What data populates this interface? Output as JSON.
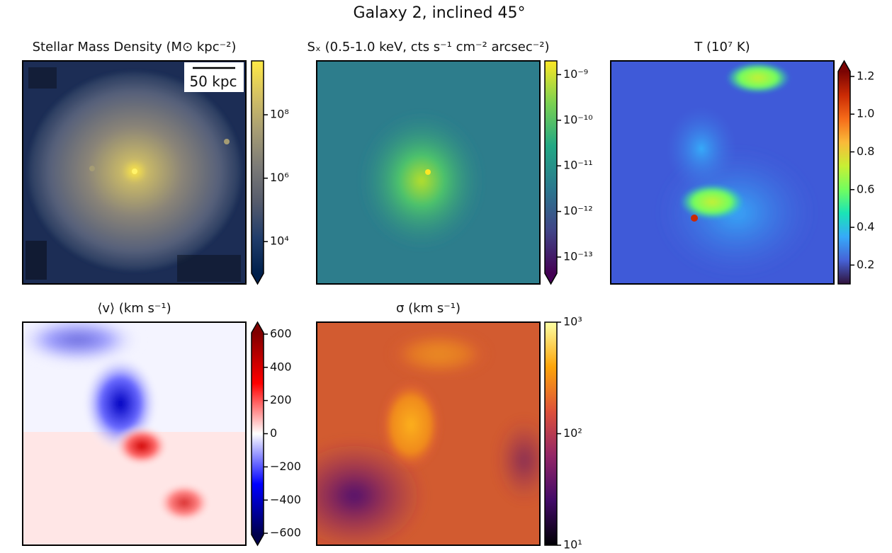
{
  "title": "Galaxy 2, inclined 45°",
  "chart_data": [
    {
      "type": "image",
      "title": "Stellar Mass Density (M⊙ kpc⁻²)",
      "annotation": "50 kpc",
      "cmap": "cividis",
      "extend": "min",
      "log": true,
      "ylim": [
        1000,
        5000000000
      ],
      "yticks": [
        {
          "value": 10000,
          "label": "10⁴"
        },
        {
          "value": 1000000,
          "label": "10⁶"
        },
        {
          "value": 100000000,
          "label": "10⁸"
        }
      ]
    },
    {
      "type": "image",
      "title": "Sₓ (0.5-1.0 keV, cts s⁻¹ cm⁻² arcsec⁻²)",
      "cmap": "viridis",
      "extend": "min",
      "log": true,
      "ylim": [
        4.4e-14,
        2e-09
      ],
      "yticks": [
        {
          "value": 1e-13,
          "label": "10⁻¹³"
        },
        {
          "value": 1e-12,
          "label": "10⁻¹²"
        },
        {
          "value": 1e-11,
          "label": "10⁻¹¹"
        },
        {
          "value": 1e-10,
          "label": "10⁻¹⁰"
        },
        {
          "value": 1e-09,
          "label": "10⁻⁹"
        }
      ]
    },
    {
      "type": "image",
      "title": "T (10⁷ K)",
      "cmap": "turbo",
      "extend": "max",
      "log": false,
      "ylim": [
        0.1,
        1.226
      ],
      "yticks": [
        0.2,
        0.4,
        0.6,
        0.8,
        {
          "value": 1,
          "label": "1.0"
        },
        1.2
      ]
    },
    {
      "type": "image",
      "title": "⟨v⟩ (km s⁻¹)",
      "cmap": "seismic",
      "extend": "both",
      "log": false,
      "ylim": [
        -608,
        608
      ],
      "yticks": [
        {
          "value": -600,
          "label": "−600"
        },
        {
          "value": -400,
          "label": "−400"
        },
        {
          "value": -200,
          "label": "−200"
        },
        0,
        200,
        400,
        600
      ]
    },
    {
      "type": "image",
      "title": "σ (km s⁻¹)",
      "cmap": "inferno",
      "extend": "neither",
      "log": true,
      "ylim": [
        10,
        1000
      ],
      "yticks": [
        {
          "value": 10,
          "label": "10¹"
        },
        {
          "value": 100,
          "label": "10²"
        },
        {
          "value": 1000,
          "label": "10³"
        }
      ]
    }
  ]
}
